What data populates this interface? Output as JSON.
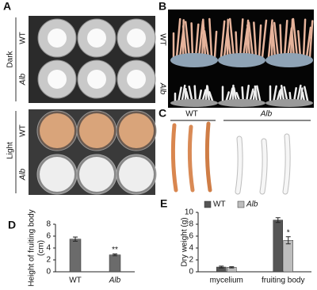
{
  "panel_labels": [
    "A",
    "B",
    "C",
    "D",
    "E"
  ],
  "panel_a": {
    "conditions": [
      "Dark",
      "Light"
    ],
    "strains": [
      "WT",
      "Alb",
      "WT",
      "Alb"
    ]
  },
  "panel_b": {
    "strains": [
      "WT",
      "Alb"
    ]
  },
  "panel_c": {
    "strains": [
      "WT",
      "Alb"
    ]
  },
  "chart_data": [
    {
      "type": "bar",
      "ylabel": [
        "Height of fruiting body",
        "(cm)"
      ],
      "categories": [
        "WT",
        "Alb"
      ],
      "values": [
        5.5,
        2.85
      ],
      "errors": [
        0.35,
        0.15
      ],
      "significance": [
        null,
        "**"
      ],
      "color": "#6b6b6b",
      "ylim": [
        0,
        8
      ],
      "yticks": [
        0,
        2,
        4,
        6,
        8
      ]
    },
    {
      "type": "grouped_bar",
      "ylabel": "Dry weight (g)",
      "categories": [
        "mycelium",
        "fruiting body"
      ],
      "series": [
        {
          "name": "WT",
          "color": "#555555",
          "values": [
            0.8,
            8.7
          ],
          "errors": [
            0.15,
            0.4
          ]
        },
        {
          "name": "Alb",
          "color": "#bdbdbd",
          "values": [
            0.75,
            5.3
          ],
          "errors": [
            0.1,
            0.6
          ],
          "significance": [
            null,
            "*"
          ]
        }
      ],
      "ylim": [
        0,
        10
      ],
      "yticks": [
        0,
        2,
        4,
        6,
        8,
        10
      ],
      "legend": "top-left"
    }
  ]
}
